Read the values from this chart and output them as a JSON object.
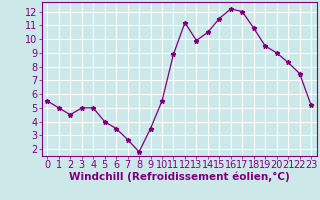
{
  "x": [
    0,
    1,
    2,
    3,
    4,
    5,
    6,
    7,
    8,
    9,
    10,
    11,
    12,
    13,
    14,
    15,
    16,
    17,
    18,
    19,
    20,
    21,
    22,
    23
  ],
  "y": [
    5.5,
    5.0,
    4.5,
    5.0,
    5.0,
    4.0,
    3.5,
    2.7,
    1.8,
    3.5,
    5.5,
    8.9,
    11.2,
    9.9,
    10.5,
    11.5,
    12.2,
    12.0,
    10.8,
    9.5,
    9.0,
    8.3,
    7.5,
    5.2
  ],
  "line_color": "#800080",
  "marker": "*",
  "bg_color": "#cce8e8",
  "grid_color": "#ffffff",
  "xlabel": "Windchill (Refroidissement éolien,°C)",
  "ylabel_ticks": [
    2,
    3,
    4,
    5,
    6,
    7,
    8,
    9,
    10,
    11,
    12
  ],
  "xlim": [
    -0.5,
    23.5
  ],
  "ylim": [
    1.5,
    12.7
  ],
  "xticks": [
    0,
    1,
    2,
    3,
    4,
    5,
    6,
    7,
    8,
    9,
    10,
    11,
    12,
    13,
    14,
    15,
    16,
    17,
    18,
    19,
    20,
    21,
    22,
    23
  ],
  "xlabel_color": "#800080",
  "tick_color": "#800080",
  "label_fontsize": 7.5,
  "tick_fontsize": 7.0
}
